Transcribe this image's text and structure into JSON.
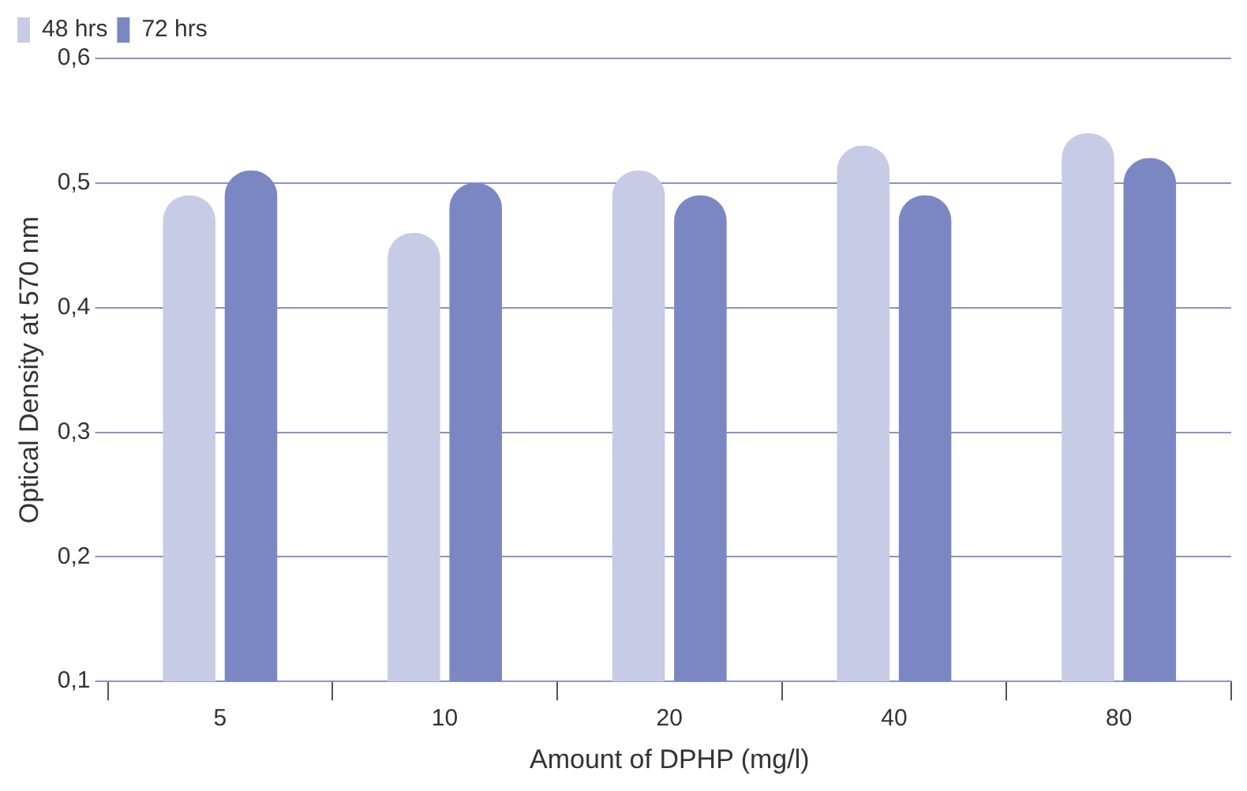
{
  "chart_data": {
    "type": "bar",
    "xlabel": "Amount of DPHP (mg/l)",
    "ylabel": "Optical Density at 570 nm",
    "categories": [
      "5",
      "10",
      "20",
      "40",
      "80"
    ],
    "series": [
      {
        "name": "48 hrs",
        "color": "#c8cbe6",
        "values": [
          0.49,
          0.46,
          0.51,
          0.53,
          0.54
        ]
      },
      {
        "name": "72 hrs",
        "color": "#7a87c2",
        "values": [
          0.51,
          0.5,
          0.49,
          0.49,
          0.52
        ]
      }
    ],
    "ylim": [
      0.1,
      0.6
    ],
    "yticks": [
      {
        "value": 0.1,
        "label": "0,1"
      },
      {
        "value": 0.2,
        "label": "0,2"
      },
      {
        "value": 0.3,
        "label": "0,3"
      },
      {
        "value": 0.4,
        "label": "0,4"
      },
      {
        "value": 0.5,
        "label": "0,5"
      },
      {
        "value": 0.6,
        "label": "0,6"
      }
    ],
    "grid": "y",
    "legend": "top left"
  }
}
